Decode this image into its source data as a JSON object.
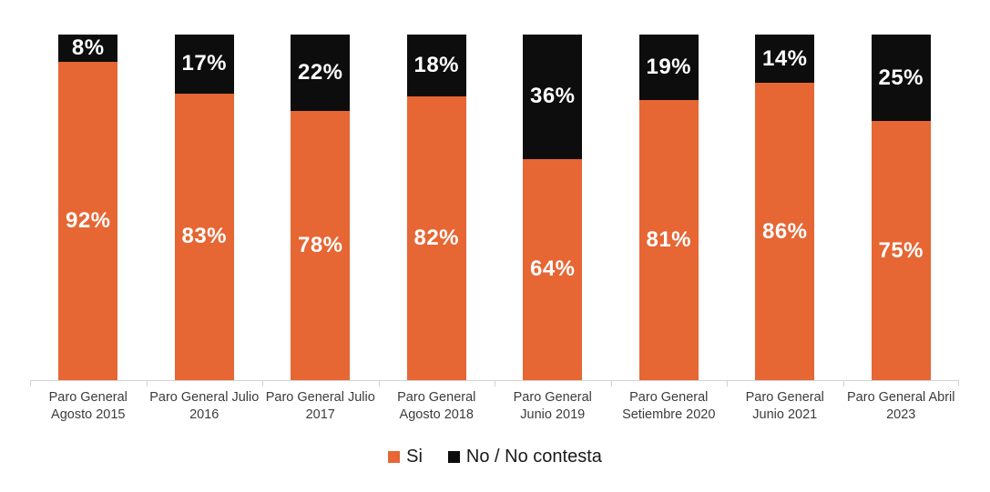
{
  "chart_data": {
    "type": "bar",
    "stacked": true,
    "orientation": "vertical",
    "title": "",
    "categories": [
      "Paro General Agosto 2015",
      "Paro General Julio 2016",
      "Paro General Julio 2017",
      "Paro General Agosto  2018",
      "Paro General Junio 2019",
      "Paro General Setiembre 2020",
      "Paro General Junio 2021",
      "Paro General Abril 2023"
    ],
    "category_label_lines": [
      [
        "Paro General",
        "Agosto 2015"
      ],
      [
        "Paro General Julio",
        "2016"
      ],
      [
        "Paro General Julio",
        "2017"
      ],
      [
        "Paro General",
        "Agosto  2018"
      ],
      [
        "Paro General",
        "Junio 2019"
      ],
      [
        "Paro General",
        "Setiembre 2020"
      ],
      [
        "Paro General",
        "Junio 2021"
      ],
      [
        "Paro General Abril",
        "2023"
      ]
    ],
    "series": [
      {
        "name": "Si",
        "color": "#E66634",
        "label_color": "#FFFFFF",
        "values": [
          92,
          83,
          78,
          82,
          64,
          81,
          86,
          75
        ]
      },
      {
        "name": "No / No contesta",
        "color": "#0D0D0D",
        "label_color": "#FFFFFF",
        "values": [
          8,
          17,
          22,
          18,
          36,
          19,
          14,
          25
        ]
      }
    ],
    "value_suffix": "%",
    "ylim": [
      0,
      100
    ],
    "grid": false,
    "legend_position": "bottom",
    "axis_color": "#D2D2D2",
    "category_label_color": "#3C3C3C",
    "legend_text_color": "#1A1A1A",
    "background_color": "#FFFFFF"
  }
}
